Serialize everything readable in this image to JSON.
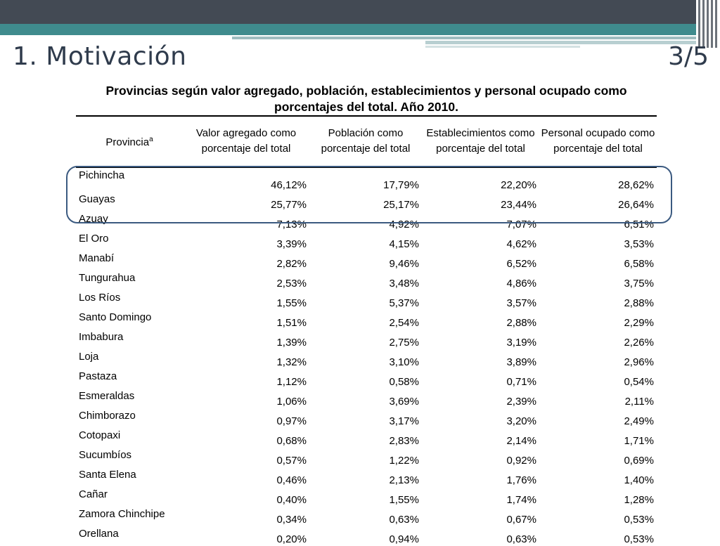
{
  "slide": {
    "title": "1. Motivación",
    "page": "3/5"
  },
  "table": {
    "caption": "Provincias según valor agregado, población, establecimientos y personal ocupado como porcentajes del total. Año 2010.",
    "headers": {
      "provincia": "Provincia",
      "provincia_sup": "a",
      "valor": "Valor agregado como porcentaje del total",
      "poblacion": "Población como porcentaje del total",
      "establecimientos": "Establecimientos como porcentaje del total",
      "personal": "Personal ocupado como porcentaje del total"
    },
    "rows": [
      [
        "Pichincha",
        "46,12%",
        "17,79%",
        "22,20%",
        "28,62%"
      ],
      [
        "Guayas",
        "25,77%",
        "25,17%",
        "23,44%",
        "26,64%"
      ],
      [
        "Azuay",
        "7,13%",
        "4,92%",
        "7,07%",
        "6,51%"
      ],
      [
        "El Oro",
        "3,39%",
        "4,15%",
        "4,62%",
        "3,53%"
      ],
      [
        "Manabí",
        "2,82%",
        "9,46%",
        "6,52%",
        "6,58%"
      ],
      [
        "Tungurahua",
        "2,53%",
        "3,48%",
        "4,86%",
        "3,75%"
      ],
      [
        "Los Ríos",
        "1,55%",
        "5,37%",
        "3,57%",
        "2,88%"
      ],
      [
        "Santo Domingo",
        "1,51%",
        "2,54%",
        "2,88%",
        "2,29%"
      ],
      [
        "Imbabura",
        "1,39%",
        "2,75%",
        "3,19%",
        "2,26%"
      ],
      [
        "Loja",
        "1,32%",
        "3,10%",
        "3,89%",
        "2,96%"
      ],
      [
        "Pastaza",
        "1,12%",
        "0,58%",
        "0,71%",
        "0,54%"
      ],
      [
        "Esmeraldas",
        "1,06%",
        "3,69%",
        "2,39%",
        "2,11%"
      ],
      [
        "Chimborazo",
        "0,97%",
        "3,17%",
        "3,20%",
        "2,49%"
      ],
      [
        "Cotopaxi",
        "0,68%",
        "2,83%",
        "2,14%",
        "1,71%"
      ],
      [
        "Sucumbíos",
        "0,57%",
        "1,22%",
        "0,92%",
        "0,69%"
      ],
      [
        "Santa Elena",
        "0,46%",
        "2,13%",
        "1,76%",
        "1,40%"
      ],
      [
        "Cañar",
        "0,40%",
        "1,55%",
        "1,74%",
        "1,28%"
      ],
      [
        "Zamora Chinchipe",
        "0,34%",
        "0,63%",
        "0,67%",
        "0,53%"
      ],
      [
        "Orellana",
        "0,20%",
        "0,94%",
        "0,63%",
        "0,53%"
      ]
    ]
  },
  "colors": {
    "banner_dark": "#434a54",
    "banner_teal": "#3f8b8d",
    "title_text": "#2f3b4c",
    "highlight_outline": "#3b5a80"
  }
}
